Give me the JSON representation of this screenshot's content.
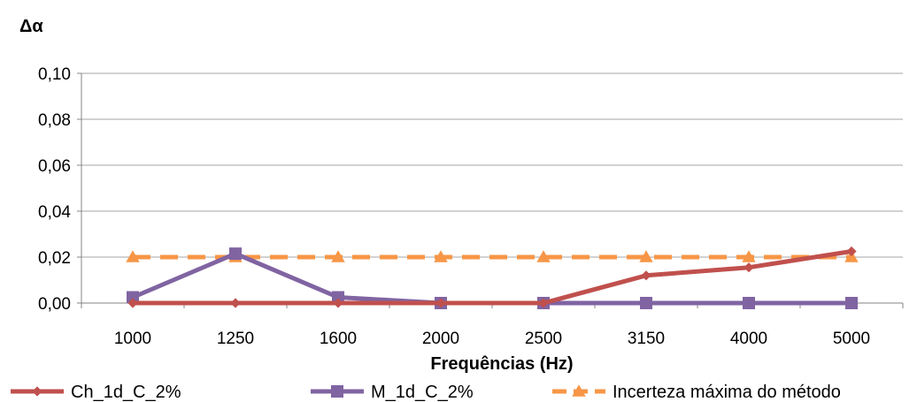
{
  "chart_data": {
    "type": "line",
    "title": "",
    "ylabel": "Δα",
    "xlabel": "Frequências (Hz)",
    "categories": [
      "1000",
      "1250",
      "1600",
      "2000",
      "2500",
      "3150",
      "4000",
      "5000"
    ],
    "ylim": [
      0,
      0.1
    ],
    "yticks": [
      "0,00",
      "0,02",
      "0,04",
      "0,06",
      "0,08",
      "0,10"
    ],
    "ytick_values": [
      0,
      0.02,
      0.04,
      0.06,
      0.08,
      0.1
    ],
    "grid": true,
    "legend_position": "bottom",
    "series": [
      {
        "name": "Ch_1d_C_2%",
        "values": [
          0.0,
          0.0,
          0.0,
          0.0,
          0.0,
          0.012,
          0.0155,
          0.0225
        ],
        "color": "#c0504d",
        "marker": "diamond",
        "dash": "solid"
      },
      {
        "name": "M_1d_C_2%",
        "values": [
          0.0025,
          0.0215,
          0.0025,
          0.0,
          0.0,
          0.0,
          0.0,
          0.0
        ],
        "color": "#8064a2",
        "marker": "square",
        "dash": "solid"
      },
      {
        "name": "Incerteza máxima do método",
        "values": [
          0.02,
          0.02,
          0.02,
          0.02,
          0.02,
          0.02,
          0.02,
          0.02
        ],
        "color": "#f79646",
        "marker": "triangle",
        "dash": "dashed"
      }
    ]
  }
}
